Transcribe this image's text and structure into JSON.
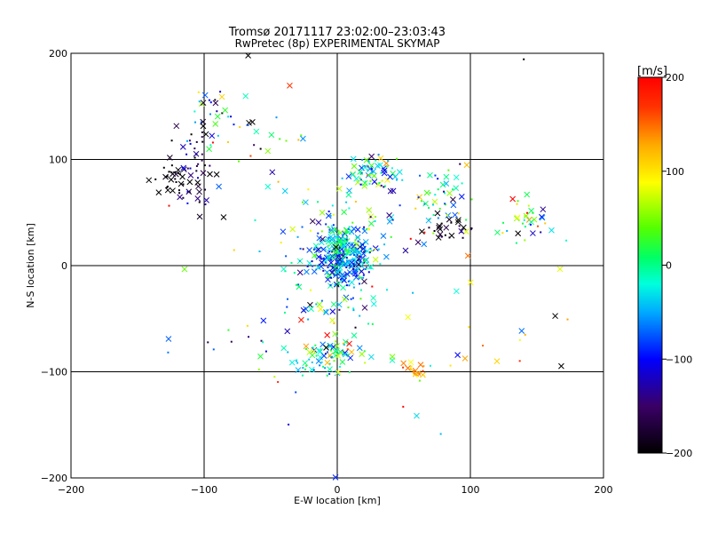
{
  "chart_data": {
    "type": "scatter",
    "title": "Tromsø 20171117 23:02:00–23:03:43",
    "subtitle": "RwPretec (8p) EXPERIMENTAL SKYMAP",
    "xlabel": "E-W location [km]",
    "ylabel": "N-S location [km]",
    "xlim": [
      -200,
      200
    ],
    "ylim": [
      -200,
      200
    ],
    "xticks": [
      "−200",
      "−100",
      "0",
      "100",
      "200"
    ],
    "yticks": [
      "−200",
      "−100",
      "0",
      "100",
      "200"
    ],
    "grid": true,
    "colorbar": {
      "label": "[m/s]",
      "range": [
        -200,
        200
      ],
      "ticks": [
        "200",
        "100",
        "0",
        "−100",
        "−200"
      ]
    },
    "clusters": [
      {
        "cx": 5,
        "cy": 8,
        "sx": 12,
        "sy": 12,
        "n": 260,
        "vmean": -60,
        "vsd": 55
      },
      {
        "cx": 2,
        "cy": 25,
        "sx": 6,
        "sy": 8,
        "n": 40,
        "vmean": 0,
        "vsd": 25
      },
      {
        "cx": -5,
        "cy": 0,
        "sx": 18,
        "sy": 25,
        "n": 60,
        "vmean": -50,
        "vsd": 60
      },
      {
        "cx": -110,
        "cy": 95,
        "sx": 10,
        "sy": 18,
        "n": 50,
        "vmean": -170,
        "vsd": 40
      },
      {
        "cx": -95,
        "cy": 140,
        "sx": 8,
        "sy": 15,
        "n": 30,
        "vmean": -80,
        "vsd": 90
      },
      {
        "cx": -125,
        "cy": 80,
        "sx": 8,
        "sy": 8,
        "n": 25,
        "vmean": -200,
        "vsd": 10
      },
      {
        "cx": 28,
        "cy": 88,
        "sx": 12,
        "sy": 7,
        "n": 70,
        "vmean": -20,
        "vsd": 70
      },
      {
        "cx": 82,
        "cy": 60,
        "sx": 10,
        "sy": 15,
        "n": 40,
        "vmean": 0,
        "vsd": 70
      },
      {
        "cx": 85,
        "cy": 35,
        "sx": 10,
        "sy": 6,
        "n": 25,
        "vmean": -190,
        "vsd": 20
      },
      {
        "cx": 140,
        "cy": 42,
        "sx": 12,
        "sy": 10,
        "n": 35,
        "vmean": -10,
        "vsd": 100
      },
      {
        "cx": -10,
        "cy": -88,
        "sx": 15,
        "sy": 8,
        "n": 60,
        "vmean": -20,
        "vsd": 60
      },
      {
        "cx": 2,
        "cy": -75,
        "sx": 10,
        "sy": 8,
        "n": 30,
        "vmean": 0,
        "vsd": 110
      },
      {
        "cx": 58,
        "cy": -100,
        "sx": 5,
        "sy": 5,
        "n": 25,
        "vmean": 140,
        "vsd": 30
      },
      {
        "cx": 0,
        "cy": -40,
        "sx": 25,
        "sy": 15,
        "n": 25,
        "vmean": -60,
        "vsd": 80
      },
      {
        "cx": 10,
        "cy": 50,
        "sx": 35,
        "sy": 20,
        "n": 60,
        "vmean": -30,
        "vsd": 90
      },
      {
        "cx": -55,
        "cy": 120,
        "sx": 20,
        "sy": 20,
        "n": 20,
        "vmean": 20,
        "vsd": 130
      },
      {
        "cx": -80,
        "cy": -70,
        "sx": 20,
        "sy": 10,
        "n": 10,
        "vmean": -90,
        "vsd": 70
      },
      {
        "cx": 90,
        "cy": -80,
        "sx": 25,
        "sy": 15,
        "n": 12,
        "vmean": 120,
        "vsd": 80
      },
      {
        "cx": 0,
        "cy": 0,
        "sx": 110,
        "sy": 110,
        "n": 45,
        "vmean": 0,
        "vsd": 140
      }
    ]
  }
}
